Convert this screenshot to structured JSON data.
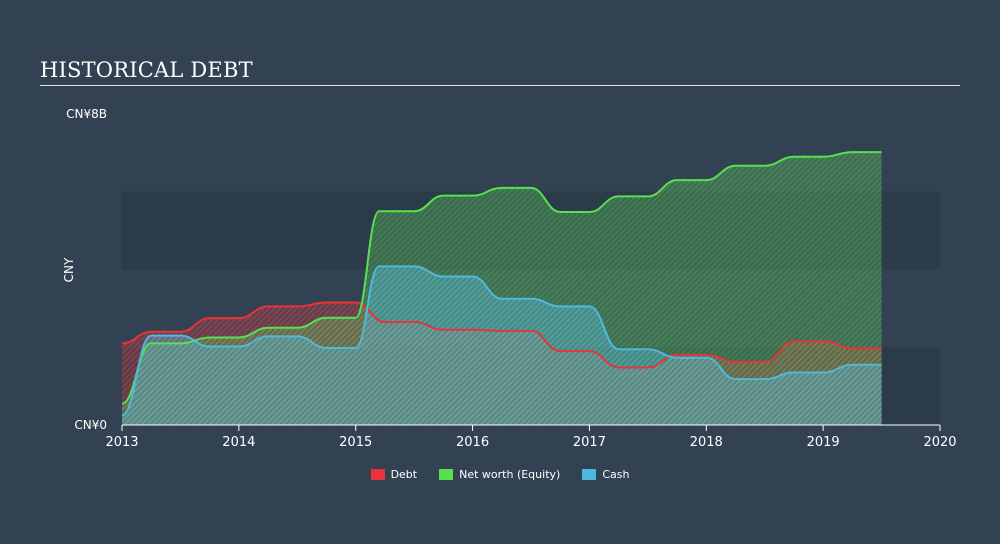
{
  "header": {
    "title": "HISTORICAL DEBT"
  },
  "colors": {
    "background": "#324252",
    "debt": "#e8323c",
    "equity": "#58e050",
    "cash": "#4fb8dc",
    "band": "#2c3b4a"
  },
  "chart_data": {
    "type": "area",
    "title": "HISTORICAL DEBT",
    "xlabel": "",
    "ylabel": "CNY",
    "ylim": [
      0,
      8
    ],
    "y_ticks": [
      {
        "value": 8,
        "label": "CN¥8B"
      },
      {
        "value": 0,
        "label": "CN¥0"
      }
    ],
    "xlim": [
      2013,
      2020
    ],
    "x_ticks": [
      {
        "value": 2013,
        "label": "2013"
      },
      {
        "value": 2014,
        "label": "2014"
      },
      {
        "value": 2015,
        "label": "2015"
      },
      {
        "value": 2016,
        "label": "2016"
      },
      {
        "value": 2017,
        "label": "2017"
      },
      {
        "value": 2018,
        "label": "2018"
      },
      {
        "value": 2019,
        "label": "2019"
      },
      {
        "value": 2020,
        "label": "2020"
      }
    ],
    "legend_position": "bottom-center",
    "series": [
      {
        "name": "Debt",
        "color": "#e8323c",
        "points": [
          [
            2013.0,
            2.1
          ],
          [
            2013.25,
            2.4
          ],
          [
            2013.5,
            2.4
          ],
          [
            2013.75,
            2.75
          ],
          [
            2014.0,
            2.75
          ],
          [
            2014.25,
            3.05
          ],
          [
            2014.5,
            3.05
          ],
          [
            2014.75,
            3.15
          ],
          [
            2015.0,
            3.15
          ],
          [
            2015.25,
            2.65
          ],
          [
            2015.5,
            2.65
          ],
          [
            2015.75,
            2.45
          ],
          [
            2016.0,
            2.45
          ],
          [
            2016.25,
            2.42
          ],
          [
            2016.5,
            2.42
          ],
          [
            2016.75,
            1.9
          ],
          [
            2017.0,
            1.9
          ],
          [
            2017.25,
            1.48
          ],
          [
            2017.5,
            1.48
          ],
          [
            2017.75,
            1.8
          ],
          [
            2018.0,
            1.8
          ],
          [
            2018.25,
            1.62
          ],
          [
            2018.5,
            1.62
          ],
          [
            2018.75,
            2.15
          ],
          [
            2019.0,
            2.15
          ],
          [
            2019.25,
            1.97
          ],
          [
            2019.5,
            1.97
          ]
        ]
      },
      {
        "name": "Net worth (Equity)",
        "color": "#58e050",
        "points": [
          [
            2013.0,
            0.55
          ],
          [
            2013.25,
            2.1
          ],
          [
            2013.5,
            2.1
          ],
          [
            2013.75,
            2.25
          ],
          [
            2014.0,
            2.25
          ],
          [
            2014.25,
            2.5
          ],
          [
            2014.5,
            2.5
          ],
          [
            2014.75,
            2.76
          ],
          [
            2015.0,
            2.76
          ],
          [
            2015.2,
            5.5
          ],
          [
            2015.5,
            5.5
          ],
          [
            2015.75,
            5.9
          ],
          [
            2016.0,
            5.9
          ],
          [
            2016.25,
            6.1
          ],
          [
            2016.5,
            6.1
          ],
          [
            2016.75,
            5.48
          ],
          [
            2017.0,
            5.48
          ],
          [
            2017.25,
            5.88
          ],
          [
            2017.5,
            5.88
          ],
          [
            2017.75,
            6.3
          ],
          [
            2018.0,
            6.3
          ],
          [
            2018.25,
            6.67
          ],
          [
            2018.5,
            6.67
          ],
          [
            2018.75,
            6.9
          ],
          [
            2019.0,
            6.9
          ],
          [
            2019.25,
            7.02
          ],
          [
            2019.5,
            7.02
          ]
        ]
      },
      {
        "name": "Cash",
        "color": "#4fb8dc",
        "points": [
          [
            2013.0,
            0.25
          ],
          [
            2013.25,
            2.3
          ],
          [
            2013.5,
            2.3
          ],
          [
            2013.75,
            2.02
          ],
          [
            2014.0,
            2.02
          ],
          [
            2014.25,
            2.28
          ],
          [
            2014.5,
            2.28
          ],
          [
            2014.75,
            1.98
          ],
          [
            2015.0,
            1.98
          ],
          [
            2015.2,
            4.08
          ],
          [
            2015.5,
            4.08
          ],
          [
            2015.75,
            3.82
          ],
          [
            2016.0,
            3.82
          ],
          [
            2016.25,
            3.25
          ],
          [
            2016.5,
            3.25
          ],
          [
            2016.75,
            3.05
          ],
          [
            2017.0,
            3.05
          ],
          [
            2017.25,
            1.95
          ],
          [
            2017.5,
            1.95
          ],
          [
            2017.75,
            1.73
          ],
          [
            2018.0,
            1.73
          ],
          [
            2018.25,
            1.18
          ],
          [
            2018.5,
            1.18
          ],
          [
            2018.75,
            1.35
          ],
          [
            2019.0,
            1.35
          ],
          [
            2019.25,
            1.55
          ],
          [
            2019.5,
            1.55
          ]
        ]
      }
    ]
  }
}
